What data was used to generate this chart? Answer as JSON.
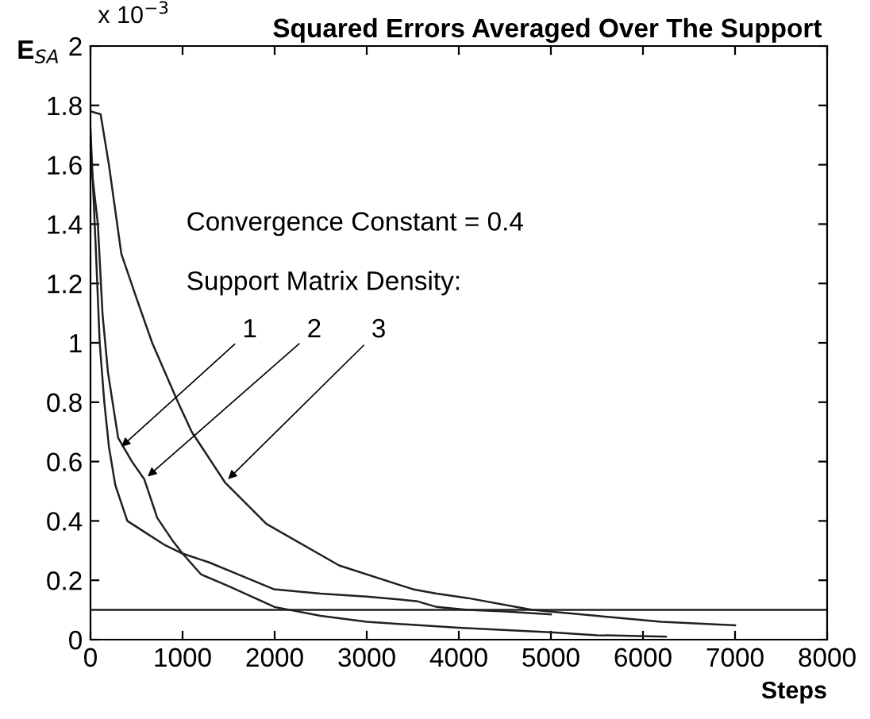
{
  "chart_data": {
    "type": "line",
    "title": "Squared Errors Averaged Over The Support",
    "xlabel": "Steps",
    "ylabel": "E$_{SA}$",
    "series": [
      {
        "color": "#202020",
        "x": [
          0,
          60,
          100,
          150,
          200,
          270,
          400,
          600,
          800,
          1000,
          1290,
          1600,
          1990,
          2500,
          3000,
          3540,
          3760,
          4100,
          4500,
          5000
        ],
        "values": [
          1.72,
          1.3,
          1.0,
          0.8,
          0.65,
          0.52,
          0.4,
          0.36,
          0.32,
          0.29,
          0.26,
          0.22,
          0.17,
          0.155,
          0.145,
          0.13,
          0.11,
          0.1,
          0.095,
          0.085
        ]
      },
      {
        "color": "#202020",
        "x": [
          0,
          80,
          130,
          190,
          300,
          450,
          585,
          725,
          900,
          1000,
          1200,
          1500,
          2000,
          2500,
          3000,
          4000,
          5000,
          5500,
          6250
        ],
        "values": [
          1.62,
          1.4,
          1.1,
          0.9,
          0.68,
          0.6,
          0.54,
          0.41,
          0.33,
          0.29,
          0.22,
          0.18,
          0.11,
          0.08,
          0.06,
          0.04,
          0.025,
          0.015,
          0.01
        ]
      },
      {
        "color": "#202020",
        "x": [
          0,
          110,
          200,
          335,
          500,
          670,
          950,
          1100,
          1460,
          1910,
          2700,
          3500,
          3760,
          4100,
          4800,
          5500,
          6200,
          7000
        ],
        "values": [
          1.78,
          1.77,
          1.6,
          1.3,
          1.15,
          1.0,
          0.8,
          0.7,
          0.53,
          0.39,
          0.25,
          0.17,
          0.155,
          0.14,
          0.1,
          0.08,
          0.06,
          0.048
        ]
      }
    ],
    "xlim": [
      0,
      8000
    ],
    "ylim": [
      0,
      2
    ],
    "xticks": [
      0,
      1000,
      2000,
      3000,
      4000,
      5000,
      6000,
      7000,
      8000
    ],
    "yticks": [
      0,
      0.2,
      0.4,
      0.6,
      0.8,
      1,
      1.2,
      1.4,
      1.6,
      1.8,
      2
    ],
    "ref_lines": [
      {
        "axis": "y",
        "value": 0.1,
        "color": "#202020"
      }
    ],
    "annotations": [
      "x 10$^{−3}$",
      "Convergence Constant = 0.4",
      "Support Matrix Density:",
      {
        "text": "1",
        "x": 300,
        "y": 0.64
      },
      {
        "text": "2",
        "x": 585,
        "y": 0.54
      },
      {
        "text": "3",
        "x": 1460,
        "y": 0.53
      }
    ],
    "grid": false,
    "legend": false,
    "marker": "none",
    "line_style": "solid"
  }
}
